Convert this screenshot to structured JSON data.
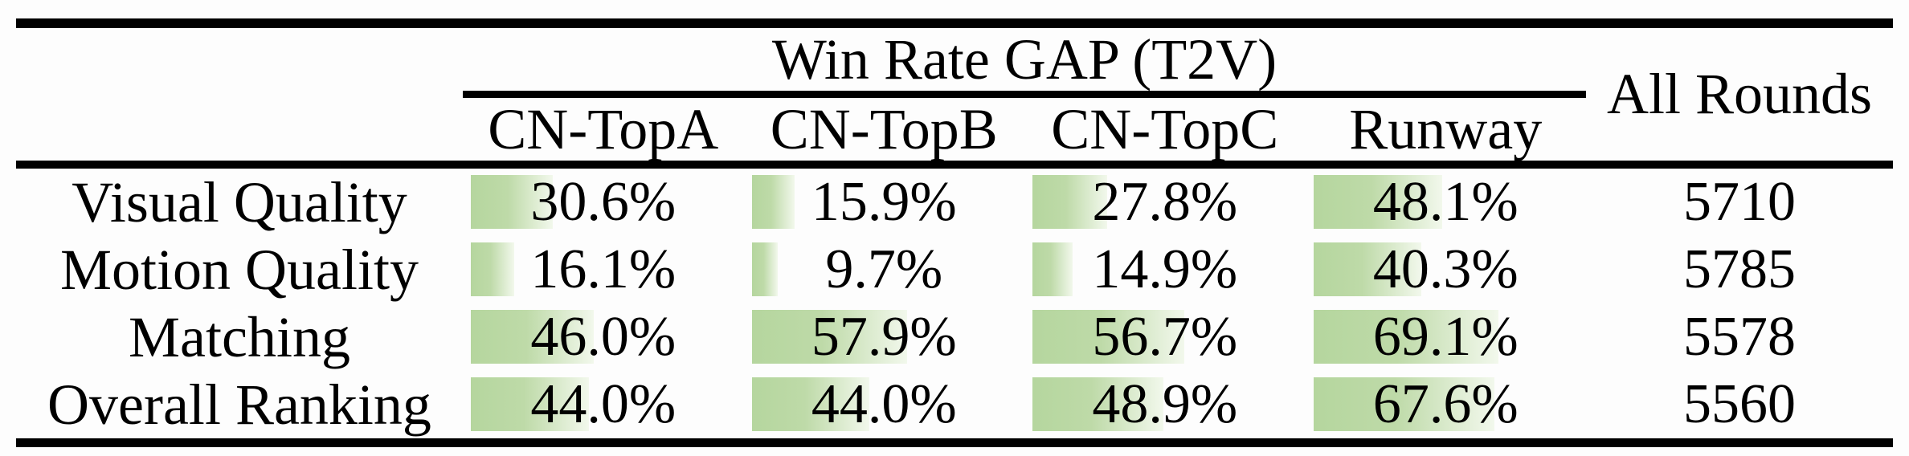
{
  "header": {
    "group_title": "Win Rate GAP (T2V)",
    "columns": [
      "CN-TopA",
      "CN-TopB",
      "CN-TopC",
      "Runway"
    ],
    "all_rounds": "All Rounds"
  },
  "rows": [
    {
      "label": "Visual Quality",
      "values": [
        "30.6%",
        "15.9%",
        "27.8%",
        "48.1%"
      ],
      "all_rounds": "5710"
    },
    {
      "label": "Motion Quality",
      "values": [
        "16.1%",
        "9.7%",
        "14.9%",
        "40.3%"
      ],
      "all_rounds": "5785"
    },
    {
      "label": "Matching",
      "values": [
        "46.0%",
        "57.9%",
        "56.7%",
        "69.1%"
      ],
      "all_rounds": "5578"
    },
    {
      "label": "Overall Ranking",
      "values": [
        "44.0%",
        "44.0%",
        "48.9%",
        "67.6%"
      ],
      "all_rounds": "5560"
    }
  ],
  "chart_data": {
    "type": "table",
    "title": "Win Rate GAP (T2V)",
    "columns": [
      "CN-TopA",
      "CN-TopB",
      "CN-TopC",
      "Runway",
      "All Rounds"
    ],
    "row_labels": [
      "Visual Quality",
      "Motion Quality",
      "Matching",
      "Overall Ranking"
    ],
    "win_rate_gap_percent": [
      [
        30.6,
        15.9,
        27.8,
        48.1
      ],
      [
        16.1,
        9.7,
        14.9,
        40.3
      ],
      [
        46.0,
        57.9,
        56.7,
        69.1
      ],
      [
        44.0,
        44.0,
        48.9,
        67.6
      ]
    ],
    "all_rounds": [
      5710,
      5785,
      5578,
      5560
    ],
    "bar_scale_max_percent": 100
  },
  "colors": {
    "bar_start": "#b5d69e",
    "bar_mid": "#bedaa8",
    "bar_end": "#f2f8ec",
    "rule": "#000000",
    "background": "#fdfdfd"
  }
}
